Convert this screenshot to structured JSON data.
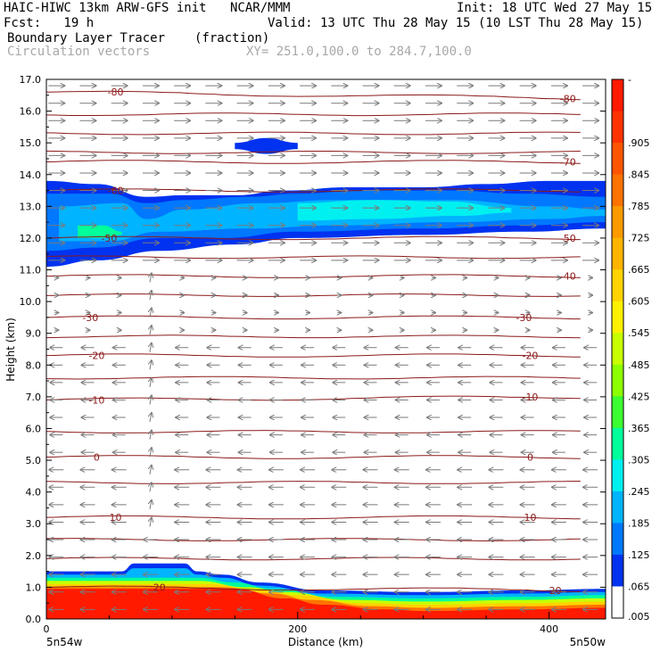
{
  "header": {
    "model": "HAIC-HIWC 13km ARW-GFS init",
    "org": "NCAR/MMM",
    "init": "Init: 18 UTC Wed 27 May 15",
    "fcst": "Fcst:   19 h",
    "valid": "Valid: 13 UTC Thu 28 May 15 (10 LST Thu 28 May 15)",
    "field": "Boundary Layer Tracer",
    "units": "(fraction)",
    "vectors": "Circulation vectors",
    "xy": "XY= 251.0,100.0 to 284.7,100.0"
  },
  "chart_data": {
    "type": "contour-cross-section",
    "xlabel": "Distance (km)",
    "ylabel": "Height (km)",
    "xlim": [
      0,
      445
    ],
    "ylim": [
      0,
      17
    ],
    "xticks": [
      "0",
      "200",
      "400"
    ],
    "xtick_values": [
      0,
      200,
      400
    ],
    "yticks": [
      "0.0",
      "1.0",
      "2.0",
      "3.0",
      "4.0",
      "5.0",
      "6.0",
      "7.0",
      "8.0",
      "9.0",
      "10.0",
      "11.0",
      "12.0",
      "13.0",
      "14.0",
      "15.0",
      "16.0",
      "17.0"
    ],
    "left_endpoint": "5n54w",
    "right_endpoint": "5n50w",
    "colorbar": {
      "labels": [
        "-",
        ".905",
        ".845",
        ".785",
        ".725",
        ".665",
        ".605",
        ".545",
        ".485",
        ".425",
        ".365",
        ".305",
        ".245",
        ".185",
        ".125",
        ".065",
        ".005"
      ],
      "colors": [
        "#ff1a00",
        "#ff3300",
        "#ff5500",
        "#ff7300",
        "#ff9900",
        "#ffb400",
        "#ffd200",
        "#fff000",
        "#c8ff00",
        "#8cff00",
        "#3cff32",
        "#00ff9a",
        "#00f0f0",
        "#00b4ff",
        "#0078ff",
        "#0032f0",
        "#ffffff"
      ]
    },
    "temperature_labels": [
      {
        "text": "-80",
        "x": 55,
        "y": 16.6
      },
      {
        "text": "-80",
        "x": 415,
        "y": 16.4
      },
      {
        "text": "-70",
        "x": 415,
        "y": 14.4
      },
      {
        "text": "-60",
        "x": 55,
        "y": 13.5
      },
      {
        "text": "-50",
        "x": 50,
        "y": 12.0
      },
      {
        "text": "-50",
        "x": 415,
        "y": 12.0
      },
      {
        "text": "-40",
        "x": 415,
        "y": 10.8
      },
      {
        "text": "-30",
        "x": 35,
        "y": 9.5
      },
      {
        "text": "-30",
        "x": 380,
        "y": 9.5
      },
      {
        "text": "-20",
        "x": 40,
        "y": 8.3
      },
      {
        "text": "-20",
        "x": 385,
        "y": 8.3
      },
      {
        "text": "-10",
        "x": 40,
        "y": 6.9
      },
      {
        "text": "-10",
        "x": 385,
        "y": 7.0
      },
      {
        "text": "0",
        "x": 40,
        "y": 5.1
      },
      {
        "text": "0",
        "x": 385,
        "y": 5.1
      },
      {
        "text": "10",
        "x": 55,
        "y": 3.2
      },
      {
        "text": "10",
        "x": 385,
        "y": 3.2
      },
      {
        "text": "20",
        "x": 90,
        "y": 1.0
      },
      {
        "text": "20",
        "x": 405,
        "y": 0.9
      }
    ],
    "tracer_bands": [
      {
        "level": 0.06,
        "color": "#0032f0",
        "upper": [
          [
            0,
            13.8
          ],
          [
            40,
            13.7
          ],
          [
            80,
            13.3
          ],
          [
            110,
            13.35
          ],
          [
            150,
            13.35
          ],
          [
            190,
            13.5
          ],
          [
            240,
            13.6
          ],
          [
            300,
            13.6
          ],
          [
            350,
            13.7
          ],
          [
            400,
            13.8
          ],
          [
            445,
            13.8
          ]
        ],
        "lower": [
          [
            0,
            11.1
          ],
          [
            40,
            11.3
          ],
          [
            90,
            11.6
          ],
          [
            150,
            11.8
          ],
          [
            200,
            12.0
          ],
          [
            300,
            12.1
          ],
          [
            380,
            12.2
          ],
          [
            445,
            12.3
          ]
        ]
      },
      {
        "level": 0.12,
        "color": "#0078ff",
        "upper": [
          [
            0,
            13.4
          ],
          [
            50,
            13.4
          ],
          [
            80,
            13.1
          ],
          [
            110,
            13.2
          ],
          [
            160,
            13.3
          ],
          [
            200,
            13.4
          ],
          [
            250,
            13.5
          ],
          [
            320,
            13.5
          ],
          [
            380,
            13.4
          ],
          [
            445,
            13.3
          ]
        ],
        "lower": [
          [
            0,
            11.6
          ],
          [
            40,
            11.7
          ],
          [
            90,
            12.0
          ],
          [
            140,
            12.0
          ],
          [
            200,
            12.2
          ],
          [
            300,
            12.3
          ],
          [
            380,
            12.4
          ],
          [
            445,
            12.5
          ]
        ]
      },
      {
        "level": 0.18,
        "color": "#00b4ff",
        "upper": [
          [
            10,
            13.0
          ],
          [
            60,
            13.1
          ],
          [
            80,
            12.6
          ],
          [
            110,
            12.9
          ],
          [
            170,
            13.1
          ],
          [
            230,
            13.2
          ],
          [
            320,
            13.2
          ],
          [
            400,
            13.0
          ],
          [
            445,
            12.9
          ]
        ],
        "lower": [
          [
            10,
            11.9
          ],
          [
            50,
            11.9
          ],
          [
            90,
            12.2
          ],
          [
            160,
            12.3
          ],
          [
            230,
            12.4
          ],
          [
            320,
            12.5
          ],
          [
            400,
            12.6
          ],
          [
            445,
            12.7
          ]
        ]
      },
      {
        "level": 0.25,
        "color": "#00f0f0",
        "upper": [
          [
            200,
            13.1
          ],
          [
            260,
            13.2
          ],
          [
            320,
            13.15
          ],
          [
            370,
            12.95
          ]
        ],
        "lower": [
          [
            200,
            12.55
          ],
          [
            260,
            12.6
          ],
          [
            330,
            12.7
          ],
          [
            370,
            12.8
          ]
        ]
      },
      {
        "level": 0.3,
        "color": "#00ff9a",
        "upper": [
          [
            25,
            12.4
          ],
          [
            45,
            12.4
          ],
          [
            60,
            12.2
          ]
        ],
        "lower": [
          [
            25,
            12.0
          ],
          [
            45,
            12.0
          ],
          [
            60,
            12.1
          ]
        ]
      },
      {
        "level": 0.06,
        "color": "#0032f0",
        "upper": [
          [
            150,
            15.0
          ],
          [
            175,
            15.15
          ],
          [
            200,
            15.0
          ]
        ],
        "lower": [
          [
            150,
            14.8
          ],
          [
            175,
            14.65
          ],
          [
            200,
            14.8
          ]
        ]
      }
    ],
    "boundary_layer": [
      {
        "color": "#0032f0",
        "upper": [
          [
            0,
            1.5
          ],
          [
            60,
            1.5
          ],
          [
            70,
            1.75
          ],
          [
            110,
            1.75
          ],
          [
            120,
            1.5
          ],
          [
            140,
            1.4
          ],
          [
            170,
            1.15
          ],
          [
            220,
            0.9
          ],
          [
            300,
            0.85
          ],
          [
            380,
            0.9
          ],
          [
            445,
            0.95
          ]
        ]
      },
      {
        "color": "#00b4ff",
        "upper": [
          [
            0,
            1.4
          ],
          [
            60,
            1.4
          ],
          [
            70,
            1.6
          ],
          [
            110,
            1.6
          ],
          [
            120,
            1.4
          ],
          [
            140,
            1.3
          ],
          [
            170,
            1.05
          ],
          [
            220,
            0.8
          ],
          [
            300,
            0.75
          ],
          [
            380,
            0.8
          ],
          [
            445,
            0.85
          ]
        ]
      },
      {
        "color": "#00ff9a",
        "upper": [
          [
            0,
            1.3
          ],
          [
            80,
            1.3
          ],
          [
            120,
            1.3
          ],
          [
            150,
            1.15
          ],
          [
            180,
            0.95
          ],
          [
            230,
            0.7
          ],
          [
            300,
            0.65
          ],
          [
            380,
            0.7
          ],
          [
            445,
            0.75
          ]
        ]
      },
      {
        "color": "#c8ff00",
        "upper": [
          [
            0,
            1.2
          ],
          [
            120,
            1.2
          ],
          [
            160,
            1.0
          ],
          [
            190,
            0.85
          ],
          [
            240,
            0.6
          ],
          [
            300,
            0.55
          ],
          [
            380,
            0.6
          ],
          [
            445,
            0.65
          ]
        ]
      },
      {
        "color": "#ffd200",
        "upper": [
          [
            0,
            1.1
          ],
          [
            130,
            1.1
          ],
          [
            170,
            0.9
          ],
          [
            200,
            0.75
          ],
          [
            250,
            0.5
          ],
          [
            300,
            0.45
          ],
          [
            380,
            0.5
          ],
          [
            445,
            0.55
          ]
        ]
      },
      {
        "color": "#ff7300",
        "upper": [
          [
            0,
            1.0
          ],
          [
            140,
            1.0
          ],
          [
            180,
            0.8
          ],
          [
            210,
            0.6
          ],
          [
            260,
            0.4
          ],
          [
            300,
            0.35
          ],
          [
            380,
            0.4
          ],
          [
            445,
            0.45
          ]
        ]
      },
      {
        "color": "#ff1a00",
        "upper": [
          [
            0,
            0.95
          ],
          [
            150,
            0.95
          ],
          [
            190,
            0.65
          ],
          [
            220,
            0.45
          ],
          [
            270,
            0.3
          ],
          [
            300,
            0.25
          ],
          [
            380,
            0.3
          ],
          [
            445,
            0.35
          ]
        ]
      }
    ]
  }
}
